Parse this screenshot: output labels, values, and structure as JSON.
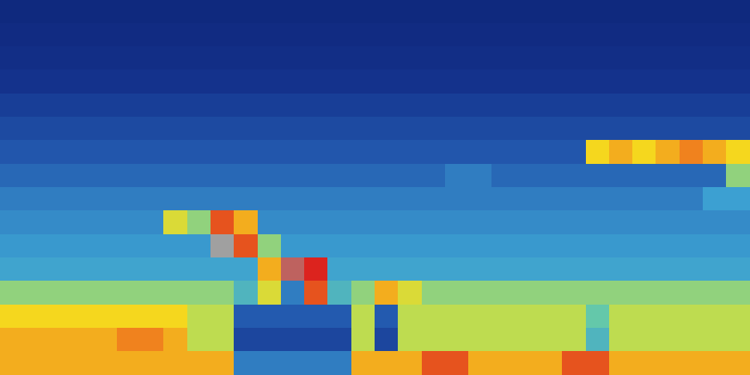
{
  "chart_data": {
    "type": "heatmap",
    "tick_labels": false,
    "zlim": [
      0,
      10
    ],
    "cells": [
      [
        0.8,
        0.8,
        0.8,
        0.8,
        0.8,
        0.8,
        0.8,
        0.8,
        0.8,
        0.8,
        0.8,
        0.8,
        0.8,
        0.8,
        0.8,
        0.8,
        0.8,
        0.8,
        0.8,
        0.8,
        0.8,
        0.8,
        0.8,
        0.8,
        0.8,
        0.8,
        0.8,
        0.8,
        0.8,
        0.8,
        0.8,
        0.8
      ],
      [
        1.0,
        1.0,
        1.0,
        1.0,
        1.0,
        1.0,
        1.0,
        1.0,
        1.0,
        1.0,
        1.0,
        1.0,
        1.0,
        1.0,
        1.0,
        1.0,
        1.0,
        1.0,
        1.0,
        1.0,
        1.0,
        1.0,
        1.0,
        1.0,
        1.0,
        1.0,
        1.0,
        1.0,
        1.0,
        1.0,
        1.0,
        1.0
      ],
      [
        1.2,
        1.2,
        1.2,
        1.2,
        1.2,
        1.2,
        1.2,
        1.2,
        1.2,
        1.2,
        1.2,
        1.2,
        1.2,
        1.2,
        1.2,
        1.2,
        1.2,
        1.2,
        1.2,
        1.2,
        1.2,
        1.2,
        1.2,
        1.2,
        1.2,
        1.2,
        1.2,
        1.2,
        1.2,
        1.2,
        1.2,
        1.2
      ],
      [
        1.5,
        1.5,
        1.5,
        1.5,
        1.5,
        1.5,
        1.5,
        1.5,
        1.5,
        1.5,
        1.5,
        1.5,
        1.5,
        1.5,
        1.5,
        1.5,
        1.5,
        1.5,
        1.5,
        1.5,
        1.5,
        1.5,
        1.5,
        1.5,
        1.5,
        1.5,
        1.5,
        1.5,
        1.5,
        1.5,
        1.5,
        1.5
      ],
      [
        1.8,
        1.8,
        1.8,
        1.8,
        1.8,
        1.8,
        1.8,
        1.8,
        1.8,
        1.8,
        1.8,
        1.8,
        1.8,
        1.8,
        1.8,
        1.8,
        1.8,
        1.8,
        1.8,
        1.8,
        1.8,
        1.8,
        1.8,
        1.8,
        1.8,
        1.8,
        1.8,
        1.8,
        1.8,
        1.8,
        1.8,
        1.8
      ],
      [
        2.1,
        2.1,
        2.1,
        2.1,
        2.1,
        2.1,
        2.1,
        2.1,
        2.1,
        2.1,
        2.1,
        2.1,
        2.1,
        2.1,
        2.1,
        2.1,
        2.1,
        2.1,
        2.1,
        2.1,
        2.1,
        2.1,
        2.1,
        2.1,
        2.1,
        2.1,
        2.1,
        2.1,
        2.1,
        2.1,
        2.1,
        2.1
      ],
      [
        2.4,
        2.4,
        2.4,
        2.4,
        2.4,
        2.4,
        2.4,
        2.4,
        2.4,
        2.4,
        2.4,
        2.4,
        2.4,
        2.4,
        2.4,
        2.4,
        2.4,
        2.4,
        2.4,
        2.4,
        2.4,
        2.4,
        2.4,
        2.4,
        2.4,
        6.5,
        7.0,
        6.5,
        7.0,
        7.5,
        7.0,
        6.5
      ],
      [
        2.7,
        2.7,
        2.7,
        2.7,
        2.7,
        2.7,
        2.7,
        2.7,
        2.7,
        2.7,
        2.7,
        2.7,
        2.7,
        2.7,
        2.7,
        2.7,
        2.7,
        2.7,
        2.7,
        3.0,
        3.0,
        2.7,
        2.7,
        2.7,
        2.7,
        2.7,
        2.7,
        2.7,
        2.7,
        2.7,
        2.7,
        5.0
      ],
      [
        3.0,
        3.0,
        3.0,
        3.0,
        3.0,
        3.0,
        3.0,
        3.0,
        3.0,
        3.0,
        3.0,
        3.0,
        3.0,
        3.0,
        3.0,
        3.0,
        3.0,
        3.0,
        3.0,
        3.0,
        3.0,
        3.0,
        3.0,
        3.0,
        3.0,
        3.0,
        3.0,
        3.0,
        3.0,
        3.0,
        3.5,
        3.5
      ],
      [
        3.2,
        3.2,
        3.2,
        3.2,
        3.2,
        3.2,
        3.2,
        6.0,
        5.0,
        8.0,
        7.0,
        3.2,
        3.2,
        3.2,
        3.2,
        3.2,
        3.2,
        3.2,
        3.2,
        3.2,
        3.2,
        3.2,
        3.2,
        3.2,
        3.2,
        3.2,
        3.2,
        3.2,
        3.2,
        3.2,
        3.2,
        3.2
      ],
      [
        3.4,
        3.4,
        3.4,
        3.4,
        3.4,
        3.4,
        3.4,
        3.4,
        3.4,
        9.5,
        8.0,
        5.0,
        3.4,
        3.4,
        3.4,
        3.4,
        3.4,
        3.4,
        3.4,
        3.4,
        3.4,
        3.4,
        3.4,
        3.4,
        3.4,
        3.4,
        3.4,
        3.4,
        3.4,
        3.4,
        3.4,
        3.4
      ],
      [
        3.6,
        3.6,
        3.6,
        3.6,
        3.6,
        3.6,
        3.6,
        3.6,
        3.6,
        3.6,
        3.6,
        7.0,
        9.0,
        8.5,
        3.6,
        3.6,
        3.6,
        3.6,
        3.6,
        3.6,
        3.6,
        3.6,
        3.6,
        3.6,
        3.6,
        3.6,
        3.6,
        3.6,
        3.6,
        3.6,
        3.6,
        3.6
      ],
      [
        5.0,
        5.0,
        5.0,
        5.0,
        5.0,
        5.0,
        5.0,
        5.0,
        5.0,
        5.0,
        4.0,
        6.0,
        3.0,
        8.0,
        4.0,
        5.0,
        7.0,
        6.0,
        5.0,
        5.0,
        5.0,
        5.0,
        5.0,
        5.0,
        5.0,
        5.0,
        5.0,
        5.0,
        5.0,
        5.0,
        5.0,
        5.0
      ],
      [
        6.5,
        6.5,
        6.5,
        6.5,
        6.5,
        6.5,
        6.5,
        6.5,
        5.5,
        5.5,
        2.5,
        2.5,
        2.5,
        2.5,
        2.5,
        5.5,
        2.5,
        5.5,
        5.5,
        5.5,
        5.5,
        5.5,
        5.5,
        5.5,
        5.5,
        4.5,
        5.5,
        5.5,
        5.5,
        5.5,
        5.5,
        5.5
      ],
      [
        7.0,
        7.0,
        7.0,
        7.0,
        7.0,
        7.5,
        7.5,
        7.0,
        5.5,
        5.5,
        2.0,
        2.0,
        2.0,
        2.0,
        2.0,
        5.5,
        2.0,
        5.5,
        5.5,
        5.5,
        5.5,
        5.5,
        5.5,
        5.5,
        5.5,
        4.0,
        5.5,
        5.5,
        5.5,
        5.5,
        5.5,
        5.5
      ],
      [
        7.0,
        7.0,
        7.0,
        7.0,
        7.0,
        7.0,
        7.0,
        7.0,
        7.0,
        7.0,
        3.0,
        3.0,
        3.0,
        3.0,
        3.0,
        7.0,
        7.0,
        7.0,
        8.0,
        8.0,
        7.0,
        7.0,
        7.0,
        7.0,
        8.0,
        8.0,
        7.0,
        7.0,
        7.0,
        7.0,
        7.0,
        7.0
      ]
    ]
  }
}
